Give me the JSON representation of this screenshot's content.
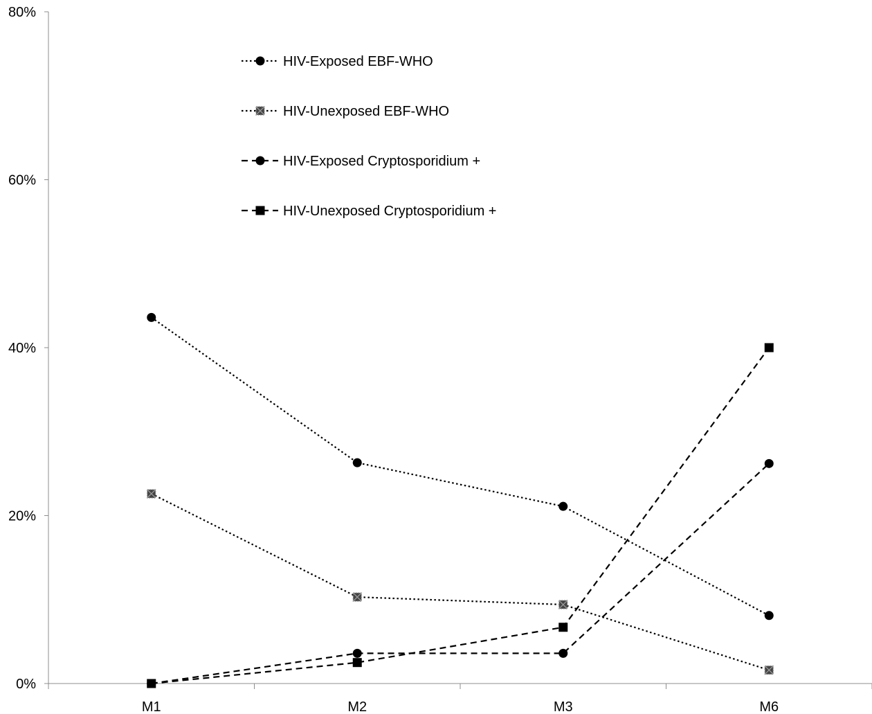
{
  "chart_data": {
    "type": "line",
    "title": "",
    "xlabel": "",
    "ylabel": "",
    "categories": [
      "M1",
      "M2",
      "M3",
      "M6"
    ],
    "ylim": [
      0,
      80
    ],
    "yticks": [
      0,
      20,
      40,
      60,
      80
    ],
    "ytick_labels": [
      "0%",
      "20%",
      "40%",
      "60%",
      "80%"
    ],
    "grid": false,
    "legend_position": "top-center",
    "series": [
      {
        "name": "HIV-Exposed EBF-WHO",
        "values": [
          43.6,
          26.3,
          21.1,
          8.1
        ],
        "line": "dotted",
        "marker": "circle",
        "color": "#000000"
      },
      {
        "name": "HIV-Unexposed EBF-WHO",
        "values": [
          22.6,
          10.3,
          9.4,
          1.6
        ],
        "line": "dotted",
        "marker": "x-square",
        "color": "#444444"
      },
      {
        "name": "HIV-Exposed Cryptosporidium +",
        "values": [
          0,
          3.6,
          3.6,
          26.2
        ],
        "line": "dashed",
        "marker": "circle",
        "color": "#000000"
      },
      {
        "name": "HIV-Unexposed Cryptosporidium +",
        "values": [
          0,
          2.5,
          6.7,
          40.0
        ],
        "line": "dashed",
        "marker": "square",
        "color": "#000000"
      }
    ]
  }
}
